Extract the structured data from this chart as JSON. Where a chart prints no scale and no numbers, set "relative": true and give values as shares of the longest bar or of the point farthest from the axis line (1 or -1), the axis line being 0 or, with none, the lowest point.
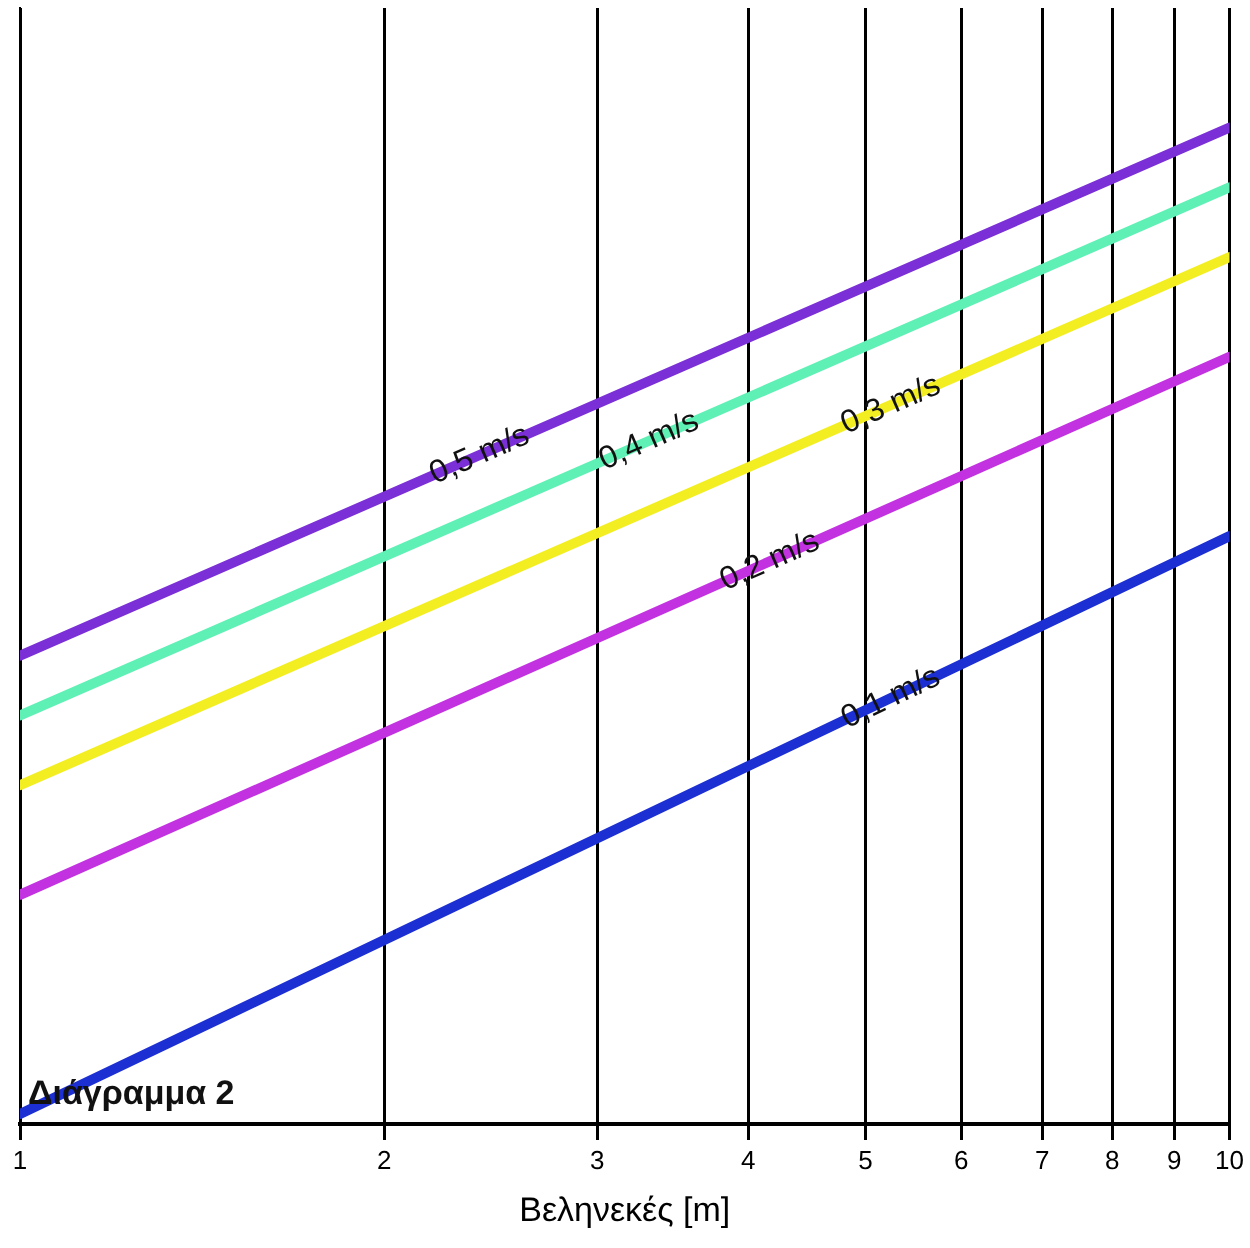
{
  "chart_data": {
    "type": "line",
    "xlabel": "Βεληνεκές [m]",
    "log": "x",
    "relative": true,
    "grid": "x",
    "legend": false,
    "marker": "none",
    "line_style": "solid",
    "xlim": [
      1,
      10
    ],
    "xticks": [
      1,
      2,
      3,
      4,
      5,
      6,
      7,
      8,
      9,
      10
    ],
    "x": [
      1,
      10
    ],
    "series": [
      {
        "name": "0,5 m/s",
        "color": "#7b2fd6",
        "values": [
          0.47,
          1
        ]
      },
      {
        "name": "0,4 m/s",
        "color": "#5ef0b4",
        "values": [
          0.41,
          0.94
        ]
      },
      {
        "name": "0,3 m/s",
        "color": "#f2ee22",
        "values": [
          0.34,
          0.87
        ]
      },
      {
        "name": "0,2 m/s",
        "color": "#c232e0",
        "values": [
          0.23,
          0.77
        ]
      },
      {
        "name": "0,1 m/s",
        "color": "#1c2fd2",
        "values": [
          0.01,
          0.59
        ]
      }
    ],
    "annotations": [
      "Διάγραμμα 2"
    ]
  }
}
